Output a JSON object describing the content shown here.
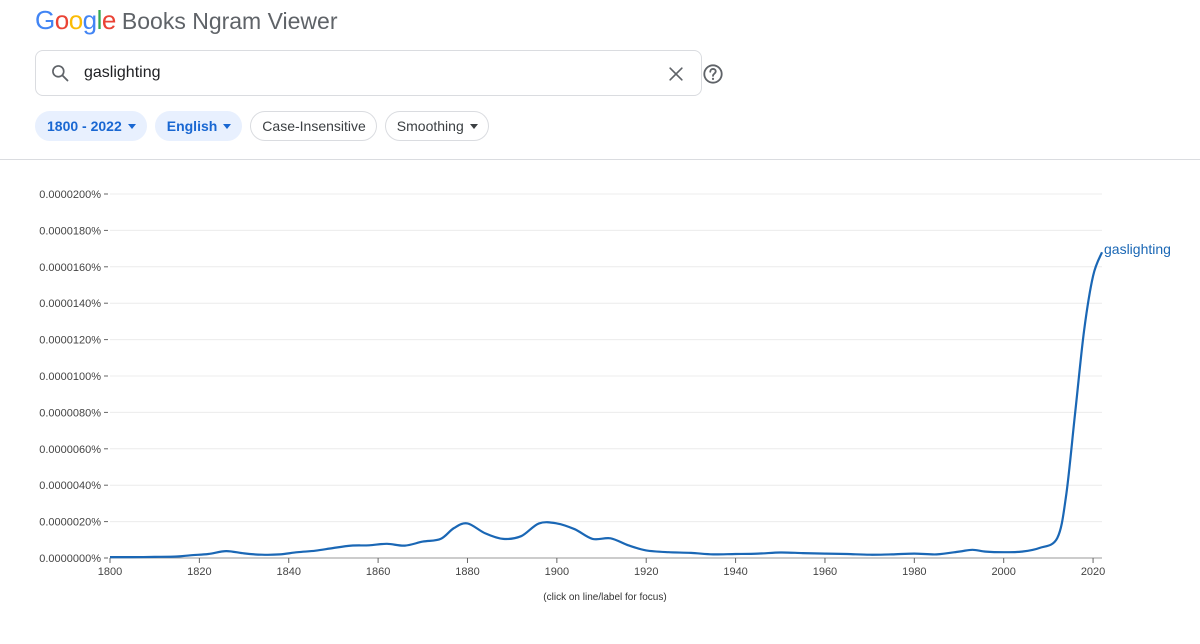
{
  "header": {
    "logo_letters": [
      {
        "char": "G",
        "color": "#4285f4"
      },
      {
        "char": "o",
        "color": "#ea4335"
      },
      {
        "char": "o",
        "color": "#fbbc05"
      },
      {
        "char": "g",
        "color": "#4285f4"
      },
      {
        "char": "l",
        "color": "#34a853"
      },
      {
        "char": "e",
        "color": "#ea4335"
      }
    ],
    "product_name": "Books Ngram Viewer"
  },
  "search": {
    "value": "gaslighting",
    "icons": [
      "search-icon",
      "close-icon",
      "help-icon"
    ]
  },
  "filters": {
    "year_range": "1800 - 2022",
    "language": "English",
    "case": "Case-Insensitive",
    "smoothing": "Smoothing"
  },
  "chart_data": {
    "type": "line",
    "ylim": [
      0,
      2e-07
    ],
    "yticks": [
      "0.0000000%",
      "0.0000020%",
      "0.0000040%",
      "0.0000060%",
      "0.0000080%",
      "0.0000100%",
      "0.0000120%",
      "0.0000140%",
      "0.0000160%",
      "0.0000180%",
      "0.0000200%"
    ],
    "xlim": [
      1800,
      2022
    ],
    "xticks": [
      "1800",
      "1820",
      "1840",
      "1860",
      "1880",
      "1900",
      "1920",
      "1940",
      "1960",
      "1980",
      "2000",
      "2020"
    ],
    "grid": true,
    "color": "#1a67b5",
    "series": [
      {
        "name": "gaslighting",
        "x": [
          1800,
          1805,
          1810,
          1815,
          1818,
          1822,
          1826,
          1830,
          1834,
          1838,
          1842,
          1846,
          1850,
          1854,
          1858,
          1862,
          1866,
          1870,
          1874,
          1877,
          1880,
          1884,
          1888,
          1892,
          1896,
          1900,
          1904,
          1908,
          1912,
          1916,
          1920,
          1925,
          1930,
          1935,
          1940,
          1945,
          1950,
          1955,
          1960,
          1965,
          1970,
          1975,
          1980,
          1985,
          1990,
          1993,
          1996,
          2000,
          2004,
          2008,
          2012,
          2014,
          2016,
          2018,
          2020,
          2022
        ],
        "y": [
          5e-10,
          5e-10,
          6e-10,
          8e-10,
          1.5e-09,
          2.2e-09,
          3.8e-09,
          2.5e-09,
          1.8e-09,
          2e-09,
          3.2e-09,
          4e-09,
          5.5e-09,
          6.8e-09,
          7e-09,
          7.8e-09,
          6.8e-09,
          9e-09,
          1.05e-08,
          1.65e-08,
          1.9e-08,
          1.35e-08,
          1.05e-08,
          1.2e-08,
          1.9e-08,
          1.9e-08,
          1.58e-08,
          1.05e-08,
          1.08e-08,
          7e-09,
          4.2e-09,
          3.2e-09,
          2.8e-09,
          2e-09,
          2.2e-09,
          2.4e-09,
          3e-09,
          2.7e-09,
          2.4e-09,
          2.2e-09,
          1.8e-09,
          2e-09,
          2.4e-09,
          2e-09,
          3.5e-09,
          4.5e-09,
          3.5e-09,
          3.2e-09,
          3.5e-09,
          5.5e-09,
          1.1e-08,
          3.5e-08,
          8e-08,
          1.25e-07,
          1.55e-07,
          1.68e-07
        ]
      }
    ],
    "footnote": "(click on line/label for focus)"
  }
}
